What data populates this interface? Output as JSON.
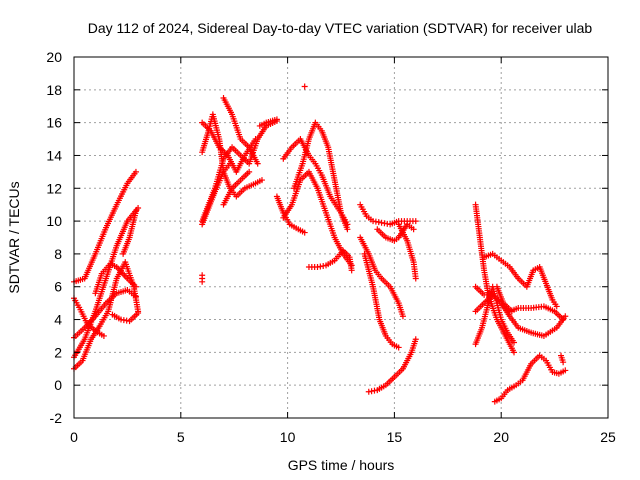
{
  "colors": {
    "series": "#ff0000",
    "axis": "#000000",
    "grid": "#a0a0a0",
    "background": "#ffffff"
  },
  "chart_data": {
    "type": "scatter",
    "title": "Day 112 of 2024, Sidereal Day-to-day VTEC variation (SDTVAR) for receiver ulab",
    "xlabel": "GPS time / hours",
    "ylabel": "SDTVAR / TECUs",
    "xlim": [
      0,
      25
    ],
    "ylim": [
      -2,
      20
    ],
    "xticks": [
      0,
      5,
      10,
      15,
      20,
      25
    ],
    "yticks": [
      -2,
      0,
      2,
      4,
      6,
      8,
      10,
      12,
      14,
      16,
      18,
      20
    ],
    "grid": true,
    "marker": "+",
    "series": [
      {
        "name": "SDTVAR",
        "tracks": [
          [
            [
              0.0,
              6.3
            ],
            [
              0.5,
              6.5
            ],
            [
              1.0,
              8.0
            ],
            [
              1.5,
              9.6
            ],
            [
              2.0,
              11.0
            ],
            [
              2.5,
              12.3
            ],
            [
              2.9,
              13.0
            ]
          ],
          [
            [
              0.0,
              1.7
            ],
            [
              0.5,
              2.8
            ],
            [
              1.0,
              4.5
            ],
            [
              1.5,
              6.5
            ],
            [
              2.0,
              8.5
            ],
            [
              2.5,
              10.0
            ],
            [
              3.0,
              10.8
            ]
          ],
          [
            [
              0.0,
              1.0
            ],
            [
              0.4,
              1.5
            ],
            [
              0.8,
              2.8
            ],
            [
              1.2,
              3.6
            ],
            [
              1.6,
              4.5
            ],
            [
              2.0,
              6.5
            ],
            [
              2.4,
              7.5
            ],
            [
              2.8,
              6.0
            ],
            [
              3.0,
              4.5
            ]
          ],
          [
            [
              0.0,
              5.3
            ],
            [
              0.3,
              4.6
            ],
            [
              0.6,
              3.8
            ],
            [
              1.0,
              3.3
            ],
            [
              1.4,
              3.0
            ]
          ],
          [
            [
              0.0,
              2.9
            ],
            [
              0.5,
              3.5
            ],
            [
              1.0,
              4.2
            ],
            [
              1.5,
              5.0
            ],
            [
              2.0,
              5.6
            ],
            [
              2.5,
              5.8
            ],
            [
              2.9,
              5.4
            ]
          ],
          [
            [
              1.0,
              5.6
            ],
            [
              1.3,
              6.8
            ],
            [
              1.7,
              7.4
            ],
            [
              2.0,
              7.2
            ],
            [
              2.5,
              6.5
            ],
            [
              2.9,
              6.0
            ]
          ],
          [
            [
              1.8,
              4.3
            ],
            [
              2.2,
              4.0
            ],
            [
              2.6,
              3.9
            ],
            [
              3.0,
              4.4
            ]
          ],
          [
            [
              2.3,
              8.0
            ],
            [
              2.6,
              9.0
            ],
            [
              2.9,
              10.6
            ]
          ],
          [
            [
              6.0,
              14.2
            ],
            [
              6.3,
              15.5
            ],
            [
              6.5,
              16.5
            ],
            [
              6.8,
              15.0
            ],
            [
              7.0,
              13.0
            ],
            [
              7.3,
              12.0
            ],
            [
              7.6,
              11.5
            ],
            [
              8.0,
              12.0
            ],
            [
              8.5,
              12.3
            ],
            [
              8.8,
              12.5
            ]
          ],
          [
            [
              6.0,
              10.0
            ],
            [
              6.3,
              11.0
            ],
            [
              6.6,
              12.0
            ],
            [
              7.0,
              13.8
            ],
            [
              7.4,
              14.5
            ],
            [
              7.8,
              14.0
            ],
            [
              8.2,
              13.5
            ],
            [
              8.6,
              15.0
            ],
            [
              9.0,
              15.8
            ],
            [
              9.5,
              16.1
            ]
          ],
          [
            [
              6.0,
              16.0
            ],
            [
              6.4,
              15.5
            ],
            [
              6.8,
              14.5
            ],
            [
              7.2,
              14.0
            ],
            [
              7.6,
              13.0
            ],
            [
              8.0,
              14.0
            ],
            [
              8.5,
              15.0
            ]
          ],
          [
            [
              6.0,
              9.8
            ],
            [
              6.3,
              10.8
            ],
            [
              6.6,
              11.8
            ],
            [
              7.0,
              13.0
            ],
            [
              7.3,
              13.5
            ]
          ],
          [
            [
              6.0,
              6.3
            ],
            [
              6.0,
              6.7
            ]
          ],
          [
            [
              7.0,
              11.0
            ],
            [
              7.4,
              12.0
            ],
            [
              7.8,
              12.5
            ],
            [
              8.2,
              13.0
            ]
          ],
          [
            [
              7.0,
              17.5
            ],
            [
              7.4,
              16.5
            ],
            [
              7.8,
              15.0
            ],
            [
              8.2,
              14.5
            ],
            [
              8.6,
              13.5
            ]
          ],
          [
            [
              9.5,
              16.2
            ],
            [
              9.0,
              16.0
            ],
            [
              8.7,
              15.8
            ]
          ],
          [
            [
              9.8,
              13.8
            ],
            [
              10.2,
              14.5
            ],
            [
              10.6,
              15.0
            ],
            [
              11.0,
              14.0
            ],
            [
              11.3,
              13.5
            ],
            [
              11.6,
              12.8
            ],
            [
              12.0,
              11.5
            ],
            [
              12.5,
              10.5
            ],
            [
              12.8,
              9.8
            ]
          ],
          [
            [
              9.8,
              10.2
            ],
            [
              10.2,
              11.0
            ],
            [
              10.6,
              12.5
            ],
            [
              11.0,
              13.0
            ],
            [
              11.4,
              12.0
            ],
            [
              11.8,
              10.5
            ],
            [
              12.2,
              9.0
            ],
            [
              12.6,
              8.0
            ],
            [
              13.0,
              7.3
            ]
          ],
          [
            [
              9.5,
              11.5
            ],
            [
              9.8,
              10.5
            ],
            [
              10.1,
              9.8
            ],
            [
              10.5,
              9.5
            ],
            [
              10.8,
              9.3
            ]
          ],
          [
            [
              10.3,
              12.0
            ],
            [
              10.7,
              13.5
            ],
            [
              11.0,
              15.0
            ],
            [
              11.3,
              16.0
            ],
            [
              11.6,
              15.5
            ],
            [
              11.9,
              14.5
            ],
            [
              12.2,
              12.5
            ],
            [
              12.5,
              10.5
            ],
            [
              12.8,
              9.5
            ]
          ],
          [
            [
              11.0,
              7.2
            ],
            [
              11.4,
              7.2
            ],
            [
              11.8,
              7.3
            ],
            [
              12.2,
              7.6
            ],
            [
              12.6,
              8.2
            ],
            [
              12.9,
              7.8
            ],
            [
              13.0,
              7.0
            ]
          ],
          [
            [
              10.8,
              18.2
            ]
          ],
          [
            [
              13.4,
              11.0
            ],
            [
              13.7,
              10.3
            ],
            [
              14.0,
              10.0
            ],
            [
              14.4,
              9.9
            ],
            [
              14.8,
              9.8
            ],
            [
              15.2,
              10.0
            ],
            [
              15.6,
              10.0
            ],
            [
              16.0,
              10.0
            ]
          ],
          [
            [
              13.4,
              9.0
            ],
            [
              13.8,
              8.0
            ],
            [
              14.1,
              7.0
            ],
            [
              14.4,
              6.5
            ],
            [
              14.8,
              6.0
            ],
            [
              15.0,
              5.5
            ],
            [
              15.2,
              5.0
            ],
            [
              15.4,
              4.2
            ]
          ],
          [
            [
              13.6,
              8.0
            ],
            [
              14.0,
              6.0
            ],
            [
              14.3,
              4.0
            ],
            [
              14.6,
              3.0
            ],
            [
              14.9,
              2.5
            ],
            [
              15.2,
              2.3
            ]
          ],
          [
            [
              13.8,
              -0.4
            ],
            [
              14.2,
              -0.3
            ],
            [
              14.6,
              0.0
            ],
            [
              15.0,
              0.5
            ],
            [
              15.4,
              1.0
            ],
            [
              15.8,
              2.0
            ],
            [
              16.0,
              2.8
            ]
          ],
          [
            [
              14.2,
              9.5
            ],
            [
              14.6,
              9.0
            ],
            [
              15.0,
              8.8
            ],
            [
              15.2,
              9.0
            ],
            [
              15.6,
              9.8
            ],
            [
              15.9,
              9.5
            ]
          ],
          [
            [
              15.2,
              9.8
            ],
            [
              15.6,
              8.8
            ],
            [
              15.9,
              7.5
            ],
            [
              16.0,
              6.5
            ]
          ],
          [
            [
              18.8,
              11.0
            ],
            [
              19.0,
              9.0
            ],
            [
              19.2,
              7.0
            ],
            [
              19.4,
              5.5
            ],
            [
              19.8,
              4.0
            ],
            [
              20.2,
              3.0
            ],
            [
              20.6,
              2.0
            ]
          ],
          [
            [
              18.8,
              6.0
            ],
            [
              19.2,
              5.5
            ],
            [
              19.6,
              5.5
            ],
            [
              20.0,
              5.0
            ],
            [
              20.4,
              4.5
            ],
            [
              20.8,
              4.7
            ],
            [
              21.4,
              4.7
            ],
            [
              22.0,
              4.8
            ],
            [
              22.5,
              4.5
            ],
            [
              22.9,
              4.0
            ]
          ],
          [
            [
              18.8,
              4.5
            ],
            [
              19.2,
              5.0
            ],
            [
              19.6,
              5.5
            ],
            [
              20.0,
              5.0
            ],
            [
              20.4,
              4.2
            ],
            [
              20.8,
              3.5
            ],
            [
              21.4,
              3.2
            ],
            [
              22.0,
              3.0
            ],
            [
              22.6,
              3.5
            ],
            [
              23.0,
              4.2
            ]
          ],
          [
            [
              18.8,
              2.5
            ],
            [
              19.1,
              3.5
            ],
            [
              19.4,
              5.0
            ],
            [
              19.6,
              6.0
            ],
            [
              19.8,
              5.0
            ],
            [
              20.0,
              4.0
            ],
            [
              20.3,
              3.2
            ],
            [
              20.6,
              2.6
            ]
          ],
          [
            [
              19.2,
              7.8
            ],
            [
              19.6,
              8.0
            ],
            [
              20.0,
              7.6
            ],
            [
              20.4,
              7.2
            ],
            [
              20.8,
              6.5
            ],
            [
              21.2,
              6.0
            ],
            [
              21.5,
              7.0
            ],
            [
              21.8,
              7.2
            ],
            [
              22.1,
              6.2
            ],
            [
              22.4,
              5.2
            ],
            [
              22.6,
              4.8
            ]
          ],
          [
            [
              19.8,
              6.0
            ],
            [
              20.1,
              5.0
            ],
            [
              20.5,
              4.5
            ]
          ],
          [
            [
              19.7,
              -1.0
            ],
            [
              20.0,
              -0.8
            ],
            [
              20.3,
              -0.3
            ],
            [
              20.7,
              0.0
            ],
            [
              21.0,
              0.3
            ],
            [
              21.4,
              1.3
            ],
            [
              21.8,
              1.8
            ],
            [
              22.1,
              1.5
            ],
            [
              22.4,
              0.8
            ],
            [
              22.7,
              0.7
            ],
            [
              23.0,
              0.9
            ]
          ],
          [
            [
              22.8,
              1.8
            ],
            [
              22.9,
              1.4
            ]
          ]
        ]
      }
    ]
  }
}
